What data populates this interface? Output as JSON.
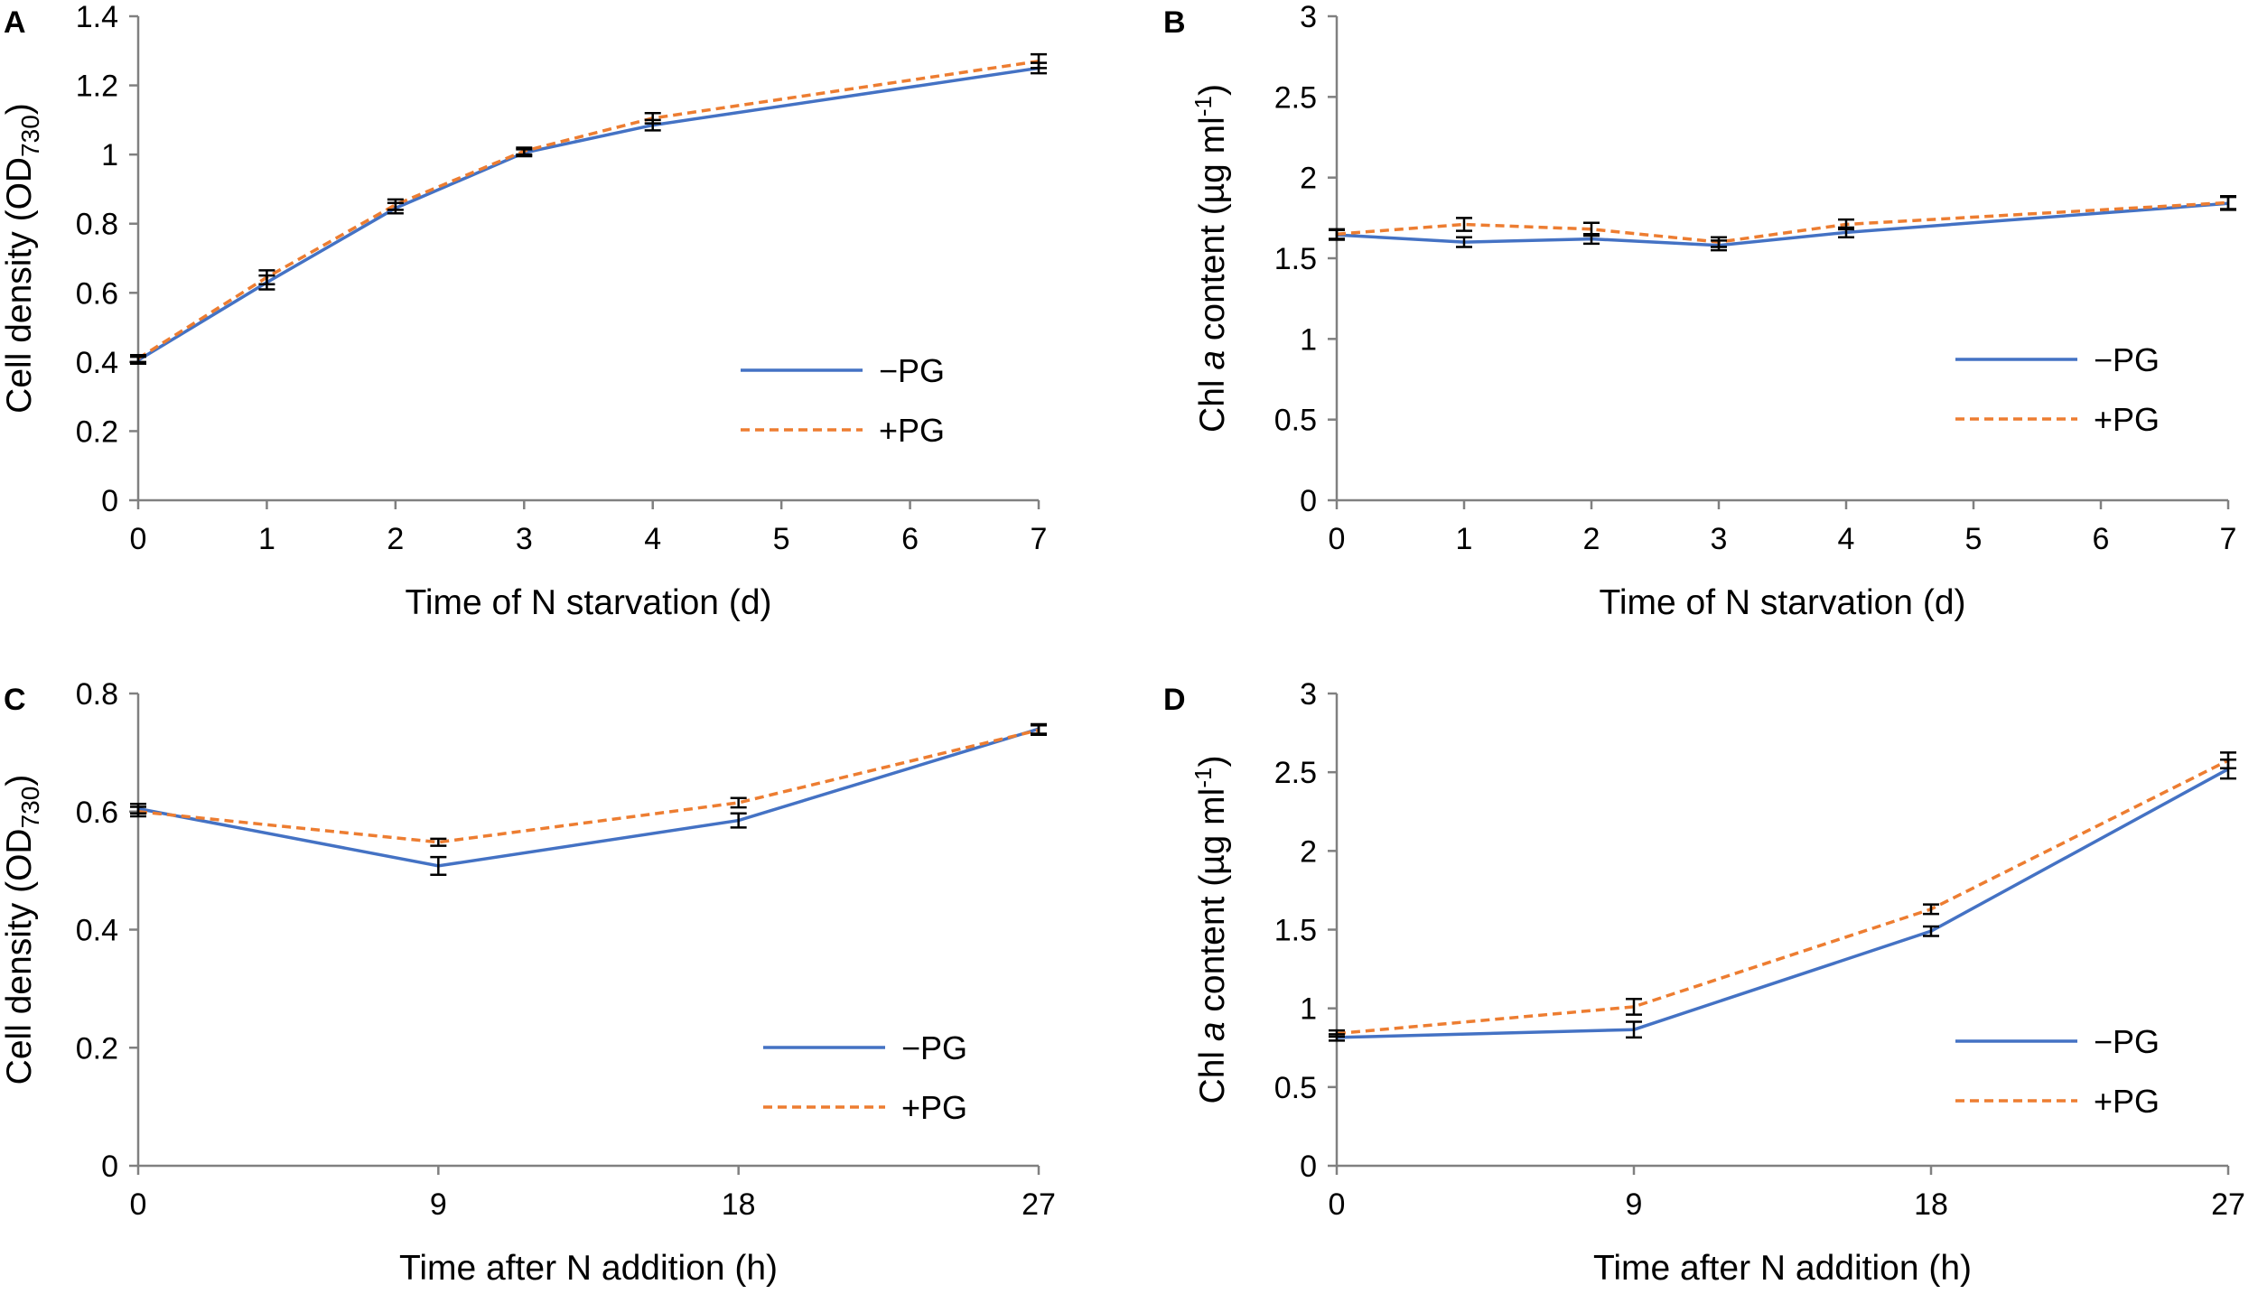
{
  "colors": {
    "minus_pg": "#4472C4",
    "plus_pg": "#ED7D31",
    "axis": "#808080",
    "errorbar": "#000000"
  },
  "chart_data": [
    {
      "panel": "A",
      "type": "line",
      "x": [
        0,
        1,
        2,
        3,
        4,
        7
      ],
      "xlim": [
        0,
        7
      ],
      "xticks": [
        "0",
        "1",
        "2",
        "3",
        "4",
        "5",
        "6",
        "7"
      ],
      "ylim": [
        0,
        1.4
      ],
      "yticks": [
        "0",
        "0.2",
        "0.4",
        "0.6",
        "0.8",
        "1",
        "1.2",
        "1.4"
      ],
      "xlabel": "Time of N starvation (d)",
      "ylabel": "Cell density (OD",
      "ylabel_sub": "730",
      "ylabel_end": ")",
      "legend_position": "lower-right",
      "series": [
        {
          "name": "−PG",
          "style": "solid",
          "values": [
            0.405,
            0.63,
            0.845,
            1.005,
            1.085,
            1.25
          ],
          "errors": [
            0.01,
            0.02,
            0.015,
            0.01,
            0.015,
            0.015
          ]
        },
        {
          "name": "+PG",
          "style": "dashed",
          "values": [
            0.41,
            0.645,
            0.855,
            1.01,
            1.105,
            1.27
          ],
          "errors": [
            0.01,
            0.02,
            0.015,
            0.01,
            0.015,
            0.02
          ]
        }
      ]
    },
    {
      "panel": "B",
      "type": "line",
      "x": [
        0,
        1,
        2,
        3,
        4,
        7
      ],
      "xlim": [
        0,
        7
      ],
      "xticks": [
        "0",
        "1",
        "2",
        "3",
        "4",
        "5",
        "6",
        "7"
      ],
      "ylim": [
        0,
        3
      ],
      "yticks": [
        "0",
        "0.5",
        "1",
        "1.5",
        "2",
        "2.5",
        "3"
      ],
      "xlabel": "Time of N starvation (d)",
      "ylabel": "Chl ",
      "ylabel_italic": "a",
      "ylabel_end": " content (µg ml",
      "ylabel_sup": "-1",
      "ylabel_close": ")",
      "legend_position": "right",
      "series": [
        {
          "name": "−PG",
          "style": "solid",
          "values": [
            1.645,
            1.6,
            1.62,
            1.58,
            1.66,
            1.84
          ],
          "errors": [
            0.03,
            0.03,
            0.03,
            0.03,
            0.03,
            0.04
          ]
        },
        {
          "name": "+PG",
          "style": "dashed",
          "values": [
            1.65,
            1.71,
            1.68,
            1.6,
            1.71,
            1.845
          ],
          "errors": [
            0.03,
            0.04,
            0.04,
            0.03,
            0.03,
            0.04
          ]
        }
      ]
    },
    {
      "panel": "C",
      "type": "line",
      "x": [
        0,
        9,
        18,
        27
      ],
      "xlim": [
        0,
        27
      ],
      "xticks": [
        "0",
        "9",
        "18",
        "27"
      ],
      "ylim": [
        0,
        0.8
      ],
      "yticks": [
        "0",
        "0.2",
        "0.4",
        "0.6",
        "0.8"
      ],
      "xlabel": "Time after N addition (h)",
      "ylabel": "Cell density (OD",
      "ylabel_sub": "730",
      "ylabel_end": ")",
      "legend_position": "lower-right",
      "series": [
        {
          "name": "−PG",
          "style": "solid",
          "values": [
            0.605,
            0.508,
            0.585,
            0.74
          ],
          "errors": [
            0.008,
            0.015,
            0.012,
            0.008
          ]
        },
        {
          "name": "+PG",
          "style": "dashed",
          "values": [
            0.6,
            0.548,
            0.615,
            0.738
          ],
          "errors": [
            0.008,
            0.006,
            0.008,
            0.008
          ]
        }
      ]
    },
    {
      "panel": "D",
      "type": "line",
      "x": [
        0,
        9,
        18,
        27
      ],
      "xlim": [
        0,
        27
      ],
      "xticks": [
        "0",
        "9",
        "18",
        "27"
      ],
      "ylim": [
        0,
        3
      ],
      "yticks": [
        "0",
        "0.5",
        "1",
        "1.5",
        "2",
        "2.5",
        "3"
      ],
      "xlabel": "Time after N addition (h)",
      "ylabel": "Chl ",
      "ylabel_italic": "a",
      "ylabel_end": " content (µg ml",
      "ylabel_sup": "-1",
      "ylabel_close": ")",
      "legend_position": "lower-right",
      "series": [
        {
          "name": "−PG",
          "style": "solid",
          "values": [
            0.815,
            0.865,
            1.49,
            2.52
          ],
          "errors": [
            0.02,
            0.05,
            0.03,
            0.06
          ]
        },
        {
          "name": "+PG",
          "style": "dashed",
          "values": [
            0.84,
            1.01,
            1.63,
            2.575
          ],
          "errors": [
            0.02,
            0.05,
            0.03,
            0.05
          ]
        }
      ]
    }
  ]
}
